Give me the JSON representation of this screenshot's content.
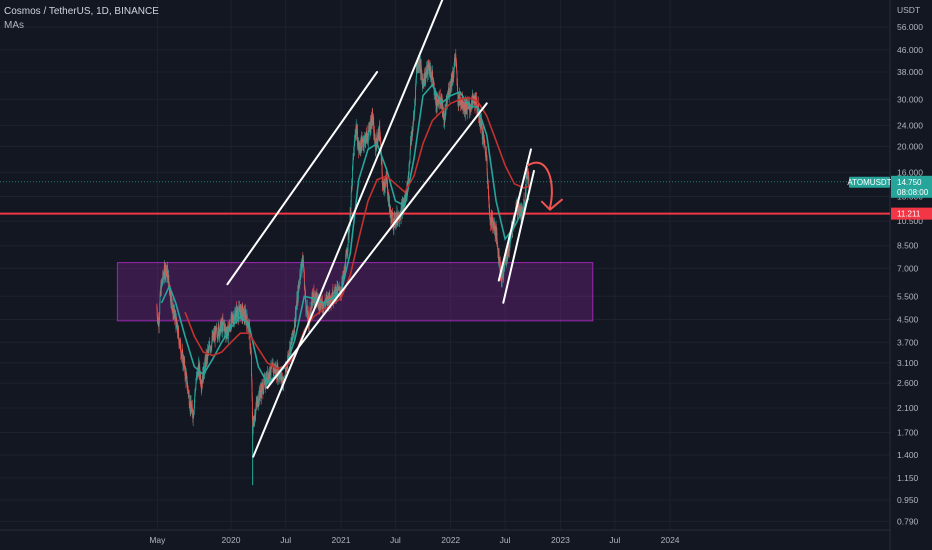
{
  "header": {
    "symbol_line": "Cosmos / TetherUS, 1D, BINANCE",
    "indicator_label": "MAs"
  },
  "chart_data": {
    "type": "line",
    "title": "Cosmos / TetherUS, 1D, BINANCE",
    "y_axis": {
      "unit": "USDT",
      "scale": "log",
      "ticks": [
        "56.000",
        "46.000",
        "38.000",
        "30.000",
        "24.000",
        "20.000",
        "16.000",
        "13.000",
        "10.500",
        "8.500",
        "7.000",
        "5.500",
        "4.500",
        "3.700",
        "3.100",
        "2.600",
        "2.100",
        "1.700",
        "1.400",
        "1.150",
        "0.950",
        "0.790"
      ],
      "range": [
        0.72,
        66
      ]
    },
    "x_axis": {
      "ticks": [
        "May",
        "2020",
        "Jul",
        "2021",
        "Jul",
        "2022",
        "Jul",
        "2023",
        "Jul",
        "2024"
      ],
      "tick_dates": [
        "2019-05-01",
        "2020-01-01",
        "2020-07-01",
        "2021-01-01",
        "2021-07-01",
        "2022-01-01",
        "2022-07-01",
        "2023-01-01",
        "2023-07-01",
        "2024-01-01"
      ]
    },
    "current_price": {
      "symbol": "ATOMUSDT",
      "price": "14.750",
      "countdown": "08:08:00",
      "value": 14.75,
      "color": "#26a69a"
    },
    "horizontal_level": {
      "label": "11.211",
      "value": 11.211,
      "color": "#f23645"
    },
    "demand_zone": {
      "from": "2019-05-01",
      "to": "2023-12-01",
      "low": 4.45,
      "high": 7.35,
      "color": "#9c27b0"
    },
    "series": [
      {
        "type": "candles_approx",
        "color_up": "#26a69a",
        "color_down": "#ef5350",
        "points": [
          [
            "2019-04-29",
            5.0
          ],
          [
            "2019-05-05",
            4.3
          ],
          [
            "2019-05-12",
            5.8
          ],
          [
            "2019-05-20",
            6.5
          ],
          [
            "2019-05-28",
            7.0
          ],
          [
            "2019-06-04",
            6.7
          ],
          [
            "2019-06-12",
            5.8
          ],
          [
            "2019-06-20",
            5.0
          ],
          [
            "2019-06-30",
            4.5
          ],
          [
            "2019-07-10",
            3.9
          ],
          [
            "2019-07-20",
            3.4
          ],
          [
            "2019-07-30",
            3.0
          ],
          [
            "2019-08-10",
            2.5
          ],
          [
            "2019-08-20",
            2.1
          ],
          [
            "2019-08-28",
            2.0
          ],
          [
            "2019-09-06",
            2.6
          ],
          [
            "2019-09-15",
            3.0
          ],
          [
            "2019-09-25",
            2.6
          ],
          [
            "2019-10-05",
            3.0
          ],
          [
            "2019-10-20",
            3.5
          ],
          [
            "2019-11-05",
            3.9
          ],
          [
            "2019-11-20",
            4.1
          ],
          [
            "2019-12-05",
            4.3
          ],
          [
            "2019-12-20",
            4.0
          ],
          [
            "2020-01-05",
            4.5
          ],
          [
            "2020-01-20",
            4.8
          ],
          [
            "2020-02-05",
            4.8
          ],
          [
            "2020-02-20",
            4.6
          ],
          [
            "2020-03-01",
            4.2
          ],
          [
            "2020-03-08",
            3.2
          ],
          [
            "2020-03-13",
            1.75
          ],
          [
            "2020-03-20",
            2.0
          ],
          [
            "2020-04-01",
            2.3
          ],
          [
            "2020-04-15",
            2.5
          ],
          [
            "2020-05-01",
            2.75
          ],
          [
            "2020-05-20",
            2.95
          ],
          [
            "2020-06-10",
            2.85
          ],
          [
            "2020-06-25",
            2.6
          ],
          [
            "2020-07-10",
            3.3
          ],
          [
            "2020-07-25",
            3.9
          ],
          [
            "2020-08-10",
            5.5
          ],
          [
            "2020-08-20",
            7.0
          ],
          [
            "2020-08-28",
            7.5
          ],
          [
            "2020-09-05",
            5.2
          ],
          [
            "2020-09-15",
            4.4
          ],
          [
            "2020-10-01",
            5.6
          ],
          [
            "2020-10-15",
            5.3
          ],
          [
            "2020-11-01",
            5.1
          ],
          [
            "2020-11-15",
            5.3
          ],
          [
            "2020-12-01",
            5.5
          ],
          [
            "2020-12-15",
            5.7
          ],
          [
            "2021-01-01",
            5.8
          ],
          [
            "2021-01-15",
            7.0
          ],
          [
            "2021-02-01",
            11.0
          ],
          [
            "2021-02-10",
            17.5
          ],
          [
            "2021-02-20",
            24.0
          ],
          [
            "2021-03-01",
            19.5
          ],
          [
            "2021-03-15",
            21.0
          ],
          [
            "2021-04-01",
            22.0
          ],
          [
            "2021-04-15",
            26.0
          ],
          [
            "2021-04-25",
            20.0
          ],
          [
            "2021-05-10",
            23.0
          ],
          [
            "2021-05-20",
            14.0
          ],
          [
            "2021-06-01",
            15.0
          ],
          [
            "2021-06-15",
            11.0
          ],
          [
            "2021-06-25",
            10.5
          ],
          [
            "2021-07-10",
            11.0
          ],
          [
            "2021-07-20",
            11.5
          ],
          [
            "2021-08-01",
            12.5
          ],
          [
            "2021-08-10",
            14.0
          ],
          [
            "2021-08-20",
            20.0
          ],
          [
            "2021-09-01",
            26.0
          ],
          [
            "2021-09-10",
            40.0
          ],
          [
            "2021-09-20",
            42.0
          ],
          [
            "2021-09-28",
            35.0
          ],
          [
            "2021-10-10",
            37.0
          ],
          [
            "2021-10-20",
            40.0
          ],
          [
            "2021-11-01",
            36.0
          ],
          [
            "2021-11-15",
            29.0
          ],
          [
            "2021-12-01",
            30.0
          ],
          [
            "2021-12-10",
            25.0
          ],
          [
            "2021-12-25",
            32.0
          ],
          [
            "2022-01-10",
            38.0
          ],
          [
            "2022-01-17",
            44.0
          ],
          [
            "2022-01-25",
            30.0
          ],
          [
            "2022-02-05",
            30.0
          ],
          [
            "2022-02-20",
            28.0
          ],
          [
            "2022-03-05",
            28.0
          ],
          [
            "2022-03-20",
            30.0
          ],
          [
            "2022-04-01",
            28.0
          ],
          [
            "2022-04-15",
            23.0
          ],
          [
            "2022-05-01",
            18.0
          ],
          [
            "2022-05-10",
            11.0
          ],
          [
            "2022-05-20",
            10.5
          ],
          [
            "2022-06-01",
            9.5
          ],
          [
            "2022-06-15",
            7.0
          ],
          [
            "2022-06-20",
            6.5
          ],
          [
            "2022-07-01",
            7.5
          ],
          [
            "2022-07-15",
            8.5
          ],
          [
            "2022-07-25",
            10.0
          ],
          [
            "2022-08-05",
            11.5
          ],
          [
            "2022-08-15",
            12.0
          ],
          [
            "2022-08-25",
            11.0
          ],
          [
            "2022-09-05",
            13.0
          ],
          [
            "2022-09-12",
            16.5
          ],
          [
            "2022-09-18",
            14.75
          ]
        ]
      },
      {
        "name": "",
        "color": "#26a69a",
        "points": [
          [
            "2019-05-15",
            5.2
          ],
          [
            "2019-06-10",
            6.0
          ],
          [
            "2019-07-01",
            5.2
          ],
          [
            "2019-08-01",
            3.9
          ],
          [
            "2019-09-01",
            3.0
          ],
          [
            "2019-10-01",
            2.8
          ],
          [
            "2019-11-01",
            3.2
          ],
          [
            "2019-12-01",
            3.7
          ],
          [
            "2020-01-01",
            4.2
          ],
          [
            "2020-02-01",
            4.6
          ],
          [
            "2020-03-01",
            4.3
          ],
          [
            "2020-04-01",
            3.0
          ],
          [
            "2020-05-01",
            2.6
          ],
          [
            "2020-06-01",
            2.8
          ],
          [
            "2020-07-01",
            3.0
          ],
          [
            "2020-08-01",
            3.8
          ],
          [
            "2020-09-01",
            5.5
          ],
          [
            "2020-10-01",
            5.4
          ],
          [
            "2020-11-01",
            5.2
          ],
          [
            "2020-12-01",
            5.4
          ],
          [
            "2021-01-01",
            5.7
          ],
          [
            "2021-02-01",
            8.0
          ],
          [
            "2021-03-01",
            15.0
          ],
          [
            "2021-04-01",
            19.5
          ],
          [
            "2021-05-01",
            20.5
          ],
          [
            "2021-06-01",
            16.5
          ],
          [
            "2021-07-01",
            12.5
          ],
          [
            "2021-08-01",
            12.0
          ],
          [
            "2021-09-01",
            18.0
          ],
          [
            "2021-10-01",
            31.0
          ],
          [
            "2021-11-01",
            34.0
          ],
          [
            "2021-12-01",
            29.0
          ],
          [
            "2022-01-01",
            31.0
          ],
          [
            "2022-02-01",
            32.0
          ],
          [
            "2022-03-01",
            28.5
          ],
          [
            "2022-04-01",
            28.0
          ],
          [
            "2022-05-01",
            22.0
          ],
          [
            "2022-06-01",
            12.5
          ],
          [
            "2022-07-01",
            9.0
          ],
          [
            "2022-08-01",
            10.0
          ],
          [
            "2022-09-01",
            11.8
          ],
          [
            "2022-09-18",
            12.8
          ]
        ]
      },
      {
        "name": "",
        "color": "#c2322e",
        "points": [
          [
            "2019-08-01",
            4.8
          ],
          [
            "2019-09-01",
            3.9
          ],
          [
            "2019-10-01",
            3.4
          ],
          [
            "2019-11-01",
            3.3
          ],
          [
            "2019-12-01",
            3.4
          ],
          [
            "2020-01-01",
            3.7
          ],
          [
            "2020-02-01",
            4.0
          ],
          [
            "2020-03-01",
            4.0
          ],
          [
            "2020-04-01",
            3.5
          ],
          [
            "2020-05-01",
            3.1
          ],
          [
            "2020-06-01",
            2.95
          ],
          [
            "2020-07-01",
            3.0
          ],
          [
            "2020-08-01",
            3.3
          ],
          [
            "2020-09-01",
            4.1
          ],
          [
            "2020-10-01",
            4.6
          ],
          [
            "2020-11-01",
            4.9
          ],
          [
            "2020-12-01",
            5.1
          ],
          [
            "2021-01-01",
            5.4
          ],
          [
            "2021-02-01",
            6.6
          ],
          [
            "2021-03-01",
            9.0
          ],
          [
            "2021-04-01",
            12.5
          ],
          [
            "2021-05-01",
            15.0
          ],
          [
            "2021-06-01",
            15.5
          ],
          [
            "2021-07-01",
            14.5
          ],
          [
            "2021-08-01",
            13.5
          ],
          [
            "2021-09-01",
            15.5
          ],
          [
            "2021-10-01",
            20.5
          ],
          [
            "2021-11-01",
            25.0
          ],
          [
            "2021-12-01",
            27.0
          ],
          [
            "2022-01-01",
            29.0
          ],
          [
            "2022-02-01",
            30.0
          ],
          [
            "2022-03-01",
            30.5
          ],
          [
            "2022-04-01",
            29.5
          ],
          [
            "2022-05-01",
            26.0
          ],
          [
            "2022-06-01",
            21.0
          ],
          [
            "2022-07-01",
            17.0
          ],
          [
            "2022-08-01",
            14.5
          ],
          [
            "2022-09-01",
            14.0
          ],
          [
            "2022-09-18",
            14.2
          ]
        ]
      }
    ],
    "drawings": {
      "color_trendlines": "#ffffff",
      "trendlines": [
        [
          [
            "2020-03-15",
            1.38
          ],
          [
            "2022-01-15",
            92
          ]
        ],
        [
          [
            "2019-12-20",
            6.1
          ],
          [
            "2021-05-01",
            38
          ]
        ],
        [
          [
            "2020-05-01",
            2.5
          ],
          [
            "2022-05-01",
            29
          ]
        ],
        [
          [
            "2022-06-10",
            6.3
          ],
          [
            "2022-09-25",
            19.5
          ]
        ],
        [
          [
            "2022-06-25",
            5.2
          ],
          [
            "2022-10-05",
            16.2
          ]
        ]
      ],
      "arrow": {
        "color": "#ef5350",
        "direction": "down"
      }
    },
    "grid": true,
    "legend": "none"
  },
  "colors": {
    "background": "#131722",
    "grid": "#1e222d",
    "text": "#b2b5be"
  }
}
